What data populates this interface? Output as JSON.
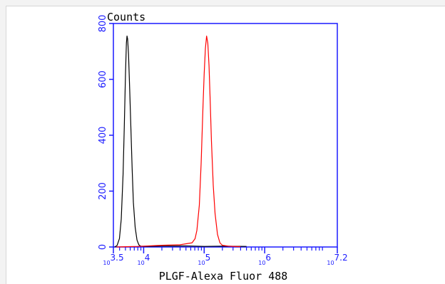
{
  "chart_data": {
    "type": "line",
    "title": "",
    "ylabel": "Counts",
    "xlabel": "PLGF-Alexa Fluor 488",
    "x_scale": "log",
    "xlim": [
      3.5,
      7.2
    ],
    "ylim": [
      0,
      800
    ],
    "y_ticks": [
      "0",
      "200",
      "400",
      "600",
      "800"
    ],
    "x_ticks": [
      {
        "base": "10",
        "exp": "3.5",
        "value": 3.5
      },
      {
        "base": "10",
        "exp": "4",
        "value": 4
      },
      {
        "base": "10",
        "exp": "5",
        "value": 5
      },
      {
        "base": "10",
        "exp": "6",
        "value": 6
      },
      {
        "base": "10",
        "exp": "7.2",
        "value": 7.2
      }
    ],
    "grid": false,
    "legend": "none",
    "colors": {
      "axis": "#1a1aff",
      "tick_text": "#1a1aff",
      "label_text": "#000000"
    },
    "series": [
      {
        "color": "#000000",
        "points": [
          [
            3.52,
            0
          ],
          [
            3.56,
            5
          ],
          [
            3.6,
            30
          ],
          [
            3.63,
            100
          ],
          [
            3.66,
            260
          ],
          [
            3.68,
            430
          ],
          [
            3.7,
            620
          ],
          [
            3.715,
            730
          ],
          [
            3.725,
            755
          ],
          [
            3.735,
            745
          ],
          [
            3.75,
            690
          ],
          [
            3.77,
            560
          ],
          [
            3.79,
            420
          ],
          [
            3.81,
            280
          ],
          [
            3.83,
            160
          ],
          [
            3.86,
            70
          ],
          [
            3.89,
            25
          ],
          [
            3.92,
            8
          ],
          [
            3.95,
            3
          ],
          [
            4.0,
            2
          ],
          [
            4.3,
            3
          ],
          [
            4.7,
            4
          ],
          [
            5.0,
            2
          ],
          [
            5.3,
            3
          ],
          [
            5.7,
            2
          ]
        ]
      },
      {
        "color": "#ff0000",
        "points": [
          [
            3.55,
            0
          ],
          [
            3.7,
            1
          ],
          [
            3.9,
            2
          ],
          [
            4.0,
            3
          ],
          [
            4.3,
            6
          ],
          [
            4.6,
            8
          ],
          [
            4.8,
            15
          ],
          [
            4.85,
            30
          ],
          [
            4.88,
            60
          ],
          [
            4.92,
            150
          ],
          [
            4.95,
            300
          ],
          [
            4.98,
            500
          ],
          [
            5.0,
            620
          ],
          [
            5.02,
            710
          ],
          [
            5.04,
            755
          ],
          [
            5.06,
            730
          ],
          [
            5.08,
            650
          ],
          [
            5.1,
            520
          ],
          [
            5.12,
            380
          ],
          [
            5.15,
            220
          ],
          [
            5.18,
            120
          ],
          [
            5.22,
            45
          ],
          [
            5.26,
            15
          ],
          [
            5.3,
            6
          ],
          [
            5.4,
            3
          ],
          [
            5.6,
            1
          ]
        ]
      }
    ]
  }
}
